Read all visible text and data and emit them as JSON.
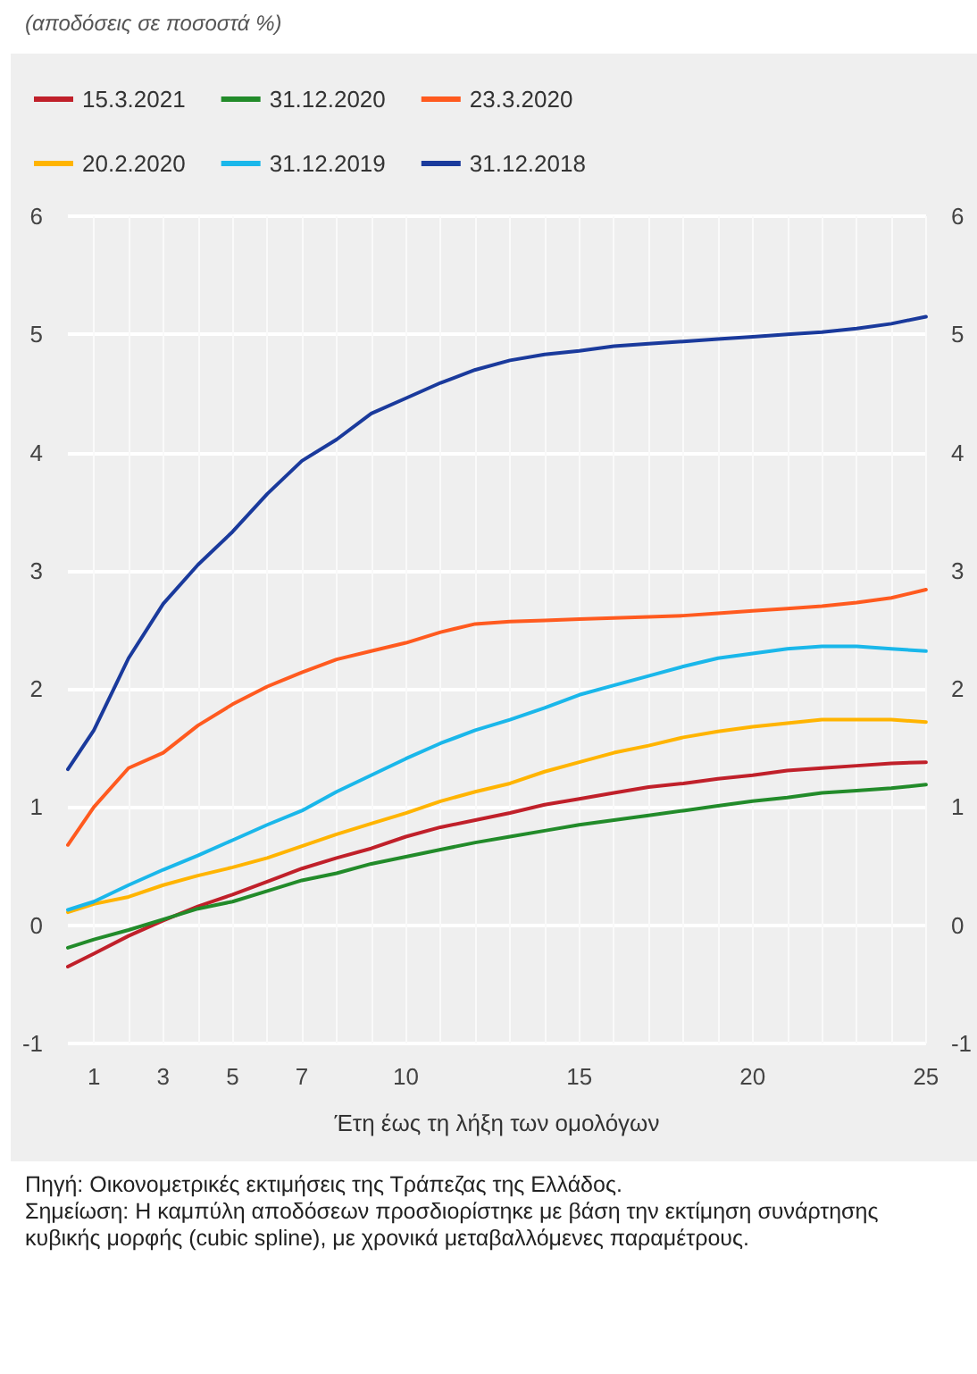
{
  "chart_data": {
    "type": "line",
    "subtitle": "(αποδόσεις σε ποσοστά %)",
    "xlabel": "Έτη έως τη λήξη των ομολόγων",
    "x": [
      0.25,
      1,
      2,
      3,
      4,
      5,
      6,
      7,
      8,
      9,
      10,
      11,
      12,
      13,
      14,
      15,
      16,
      17,
      18,
      19,
      20,
      21,
      22,
      23,
      24,
      25
    ],
    "series": [
      {
        "name": "15.3.2021",
        "color": "#c0202a",
        "values": [
          -0.35,
          -0.24,
          -0.09,
          0.04,
          0.16,
          0.26,
          0.37,
          0.48,
          0.57,
          0.65,
          0.75,
          0.83,
          0.89,
          0.95,
          1.02,
          1.07,
          1.12,
          1.17,
          1.2,
          1.24,
          1.27,
          1.31,
          1.33,
          1.35,
          1.37,
          1.38
        ]
      },
      {
        "name": "31.12.2020",
        "color": "#228b2a",
        "values": [
          -0.19,
          -0.12,
          -0.04,
          0.05,
          0.14,
          0.2,
          0.29,
          0.38,
          0.44,
          0.52,
          0.58,
          0.64,
          0.7,
          0.75,
          0.8,
          0.85,
          0.89,
          0.93,
          0.97,
          1.01,
          1.05,
          1.08,
          1.12,
          1.14,
          1.16,
          1.19
        ]
      },
      {
        "name": "23.3.2020",
        "color": "#ff5a1f",
        "values": [
          0.68,
          1.0,
          1.33,
          1.46,
          1.69,
          1.87,
          2.02,
          2.14,
          2.25,
          2.32,
          2.39,
          2.48,
          2.55,
          2.57,
          2.58,
          2.59,
          2.6,
          2.61,
          2.62,
          2.64,
          2.66,
          2.68,
          2.7,
          2.73,
          2.77,
          2.84
        ]
      },
      {
        "name": "20.2.2020",
        "color": "#ffb400",
        "values": [
          0.11,
          0.18,
          0.24,
          0.34,
          0.42,
          0.49,
          0.57,
          0.67,
          0.77,
          0.86,
          0.95,
          1.05,
          1.13,
          1.2,
          1.3,
          1.38,
          1.46,
          1.52,
          1.59,
          1.64,
          1.68,
          1.71,
          1.74,
          1.74,
          1.74,
          1.72
        ]
      },
      {
        "name": "31.12.2019",
        "color": "#1ab7ea",
        "values": [
          0.13,
          0.2,
          0.34,
          0.47,
          0.59,
          0.72,
          0.85,
          0.97,
          1.13,
          1.27,
          1.41,
          1.54,
          1.65,
          1.74,
          1.84,
          1.95,
          2.03,
          2.11,
          2.19,
          2.26,
          2.3,
          2.34,
          2.36,
          2.36,
          2.34,
          2.32
        ]
      },
      {
        "name": "31.12.2018",
        "color": "#1a3a9c",
        "values": [
          1.32,
          1.65,
          2.26,
          2.72,
          3.05,
          3.33,
          3.65,
          3.93,
          4.11,
          4.33,
          4.46,
          4.59,
          4.7,
          4.78,
          4.83,
          4.86,
          4.9,
          4.92,
          4.94,
          4.96,
          4.98,
          5.0,
          5.02,
          5.05,
          5.09,
          5.15
        ]
      }
    ],
    "xlim": [
      0.25,
      25
    ],
    "xticks": [
      1,
      {
        "value": 2,
        "label": null
      },
      3,
      {
        "value": 4,
        "label": null
      },
      5,
      {
        "value": 6,
        "label": null
      },
      7,
      {
        "value": 8,
        "label": null
      },
      {
        "value": 9,
        "label": null
      },
      10,
      {
        "value": 11,
        "label": null
      },
      {
        "value": 12,
        "label": null
      },
      {
        "value": 13,
        "label": null
      },
      {
        "value": 14,
        "label": null
      },
      15,
      {
        "value": 16,
        "label": null
      },
      {
        "value": 17,
        "label": null
      },
      {
        "value": 18,
        "label": null
      },
      {
        "value": 19,
        "label": null
      },
      20,
      {
        "value": 21,
        "label": null
      },
      {
        "value": 22,
        "label": null
      },
      {
        "value": 23,
        "label": null
      },
      {
        "value": 24,
        "label": null
      },
      25
    ],
    "ylim": [
      -1,
      6
    ],
    "yticks": [
      -1,
      0,
      1,
      2,
      3,
      4,
      5,
      6
    ],
    "y2lim": [
      -1,
      6
    ],
    "y2ticks": [
      -1,
      0,
      1,
      2,
      3,
      4,
      5,
      6
    ],
    "grid": true,
    "legend": "top",
    "marker": "none",
    "line_style": "solid",
    "annotations": [
      "Πηγή: Οικονομετρικές εκτιμήσεις της Τράπεζας της Ελλάδος.",
      "Σημείωση: Η καμπύλη αποδόσεων προσδιορίστηκε με βάση την εκτίμηση συνάρτησης κυβικής μορφής (cubic spline), με χρονικά μεταβαλλόμενες παραμέτρους."
    ]
  }
}
